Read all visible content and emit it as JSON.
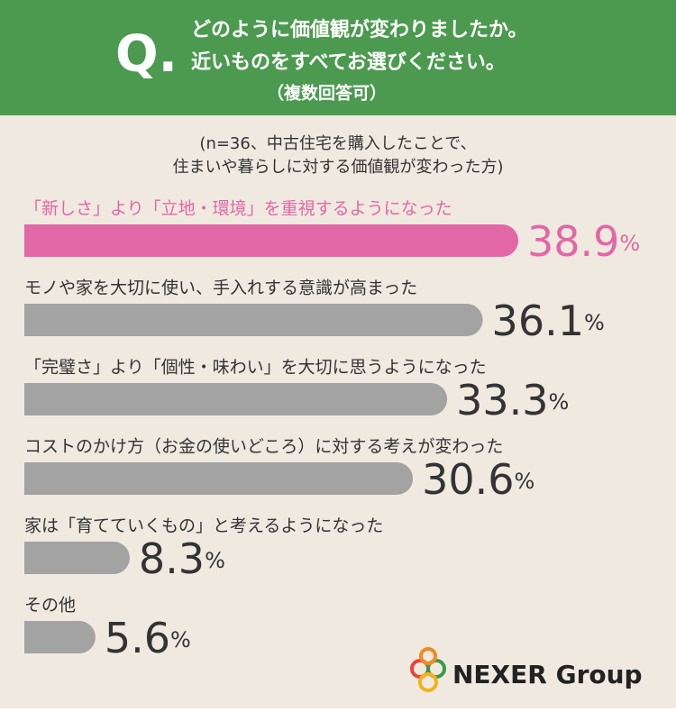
{
  "chart_data": {
    "type": "hbar",
    "title_mark": "Q.",
    "title_lines": [
      "どのように価値観が変わりましたか。",
      "近いものをすべてお選びください。",
      "（複数回答可）"
    ],
    "subtitle_lines": [
      "(n=36、中古住宅を購入したことで、",
      "住まいや暮らしに対する価値観が変わった方)"
    ],
    "categories": [
      "「新しさ」より「立地・環境」を重視するようになった",
      "モノや家を大切に使い、手入れする意識が高まった",
      "「完璧さ」より「個性・味わい」を大切に思うようになった",
      "コストのかけ方（お金の使いどころ）に対する考えが変わった",
      "家は「育てていくもの」と考えるようになった",
      "その他"
    ],
    "values": [
      38.9,
      36.1,
      33.3,
      30.6,
      8.3,
      5.6
    ],
    "value_labels": [
      "38.9%",
      "36.1%",
      "33.3%",
      "30.6%",
      "8.3%",
      "5.6%"
    ],
    "colors": [
      "#e267a7",
      "#a3a3a3",
      "#a3a3a3",
      "#a3a3a3",
      "#a3a3a3",
      "#a3a3a3"
    ],
    "label_colors": [
      "#e267a7",
      "#333333",
      "#333333",
      "#333333",
      "#333333",
      "#333333"
    ]
  },
  "brand": "NEXER Group"
}
